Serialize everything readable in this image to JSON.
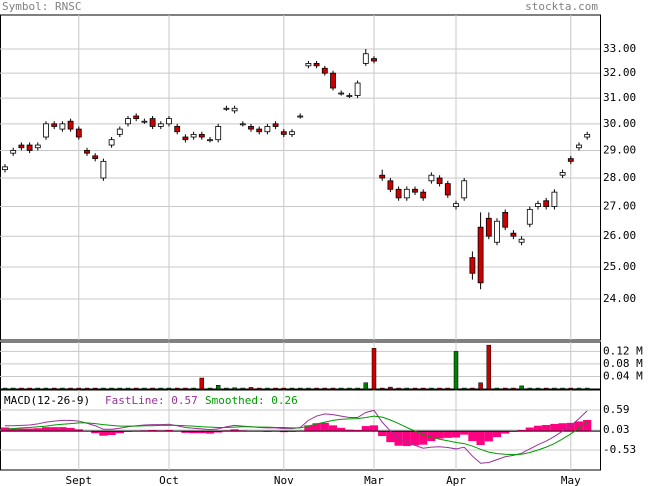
{
  "header": {
    "symbol": "Symbol: RNSC",
    "site": "stockta.com"
  },
  "chart_data": [
    {
      "type": "candlestick",
      "log": true,
      "grid": true,
      "up_color": "#ffffff",
      "down_color": "#cc0000",
      "ylim": [
        22.78,
        34.46
      ],
      "yticks": [
        {
          "value": 33,
          "label": "33.00"
        },
        {
          "value": 32,
          "label": "32.00"
        },
        {
          "value": 31,
          "label": "31.00"
        },
        {
          "value": 30,
          "label": "30.00"
        },
        {
          "value": 29,
          "label": "29.00"
        },
        {
          "value": 28,
          "label": "28.00"
        },
        {
          "value": 27,
          "label": "27.00"
        },
        {
          "value": 26,
          "label": "26.00"
        },
        {
          "value": 25,
          "label": "25.00"
        },
        {
          "value": 24,
          "label": "24.00"
        }
      ],
      "open": [
        28.3,
        28.9,
        29.2,
        29.2,
        29.1,
        29.5,
        30.0,
        29.8,
        30.1,
        29.8,
        29.0,
        28.8,
        28.0,
        29.2,
        29.6,
        30.0,
        30.3,
        30.1,
        30.2,
        29.9,
        30.0,
        29.9,
        29.5,
        29.5,
        29.6,
        29.4,
        29.4,
        30.6,
        30.5,
        30.0,
        29.9,
        29.8,
        29.7,
        30.0,
        29.7,
        29.6,
        30.3,
        32.3,
        32.4,
        32.2,
        32.0,
        31.2,
        31.1,
        31.1,
        32.4,
        32.6,
        28.1,
        27.9,
        27.6,
        27.3,
        27.6,
        27.5,
        27.9,
        28.0,
        27.8,
        27.0,
        27.3,
        25.3,
        26.3,
        26.6,
        25.8,
        26.8,
        26.1,
        25.8,
        26.4,
        27.0,
        27.2,
        27.0,
        28.1,
        28.7,
        29.1,
        29.5
      ],
      "high": [
        28.5,
        29.1,
        29.3,
        29.3,
        29.3,
        30.1,
        30.1,
        30.1,
        30.2,
        29.9,
        29.1,
        28.9,
        28.7,
        29.5,
        29.9,
        30.3,
        30.4,
        30.2,
        30.3,
        30.1,
        30.3,
        30.0,
        29.6,
        29.7,
        29.7,
        29.5,
        30.0,
        30.7,
        30.7,
        30.1,
        30.0,
        29.9,
        30.0,
        30.1,
        29.8,
        29.8,
        30.4,
        32.5,
        32.5,
        32.3,
        32.1,
        31.3,
        31.2,
        31.7,
        33.0,
        32.7,
        28.3,
        28.0,
        27.7,
        27.7,
        27.7,
        27.6,
        28.2,
        28.1,
        27.9,
        27.2,
        28.0,
        25.5,
        26.8,
        26.8,
        26.6,
        26.9,
        26.2,
        26.0,
        27.0,
        27.2,
        27.3,
        27.6,
        28.3,
        28.8,
        29.3,
        29.7
      ],
      "low": [
        28.2,
        28.8,
        29.0,
        28.9,
        29.0,
        29.4,
        29.8,
        29.7,
        29.7,
        29.4,
        28.8,
        28.6,
        27.9,
        29.1,
        29.5,
        29.9,
        30.1,
        30.0,
        29.8,
        29.8,
        29.9,
        29.6,
        29.3,
        29.4,
        29.4,
        29.3,
        29.3,
        30.5,
        30.4,
        29.9,
        29.7,
        29.6,
        29.6,
        29.8,
        29.5,
        29.5,
        30.2,
        32.2,
        32.2,
        31.9,
        31.3,
        31.1,
        31.0,
        31.0,
        32.3,
        32.4,
        27.9,
        27.5,
        27.2,
        27.2,
        27.4,
        27.2,
        27.8,
        27.7,
        27.3,
        26.9,
        27.2,
        24.6,
        24.3,
        25.9,
        25.7,
        26.2,
        25.9,
        25.7,
        26.3,
        26.9,
        26.9,
        26.9,
        28.0,
        28.5,
        29.0,
        29.4
      ],
      "close": [
        28.4,
        29.0,
        29.1,
        29.0,
        29.2,
        30.0,
        29.9,
        30.0,
        29.8,
        29.5,
        28.9,
        28.7,
        28.6,
        29.4,
        29.8,
        30.2,
        30.2,
        30.1,
        29.9,
        30.0,
        30.2,
        29.7,
        29.4,
        29.6,
        29.5,
        29.4,
        29.9,
        30.6,
        30.6,
        30.0,
        29.8,
        29.7,
        29.9,
        29.9,
        29.6,
        29.7,
        30.3,
        32.4,
        32.3,
        32.0,
        31.4,
        31.2,
        31.1,
        31.6,
        32.8,
        32.5,
        28.0,
        27.6,
        27.3,
        27.6,
        27.5,
        27.3,
        28.1,
        27.8,
        27.4,
        27.1,
        27.9,
        24.8,
        24.5,
        26.0,
        26.5,
        26.3,
        26.0,
        25.9,
        26.9,
        27.1,
        27.0,
        27.5,
        28.2,
        28.6,
        29.2,
        29.6
      ]
    },
    {
      "type": "volume",
      "grid": true,
      "up_color": "#008000",
      "down_color": "#cc0000",
      "ylim": [
        0,
        0.15
      ],
      "yticks": [
        {
          "value": 0.12,
          "label": "0.12 M"
        },
        {
          "value": 0.08,
          "label": "0.08 M"
        },
        {
          "value": 0.04,
          "label": "0.04 M"
        }
      ],
      "values": [
        0.003,
        0.003,
        0.003,
        0.003,
        0.003,
        0.003,
        0.003,
        0.003,
        0.003,
        0.003,
        0.003,
        0.003,
        0.003,
        0.003,
        0.003,
        0.003,
        0.003,
        0.003,
        0.003,
        0.003,
        0.003,
        0.003,
        0.003,
        0.003,
        0.035,
        0.003,
        0.012,
        0.003,
        0.004,
        0.003,
        0.005,
        0.003,
        0.003,
        0.003,
        0.003,
        0.003,
        0.003,
        0.003,
        0.003,
        0.003,
        0.003,
        0.003,
        0.003,
        0.003,
        0.02,
        0.13,
        0.003,
        0.006,
        0.003,
        0.003,
        0.003,
        0.003,
        0.003,
        0.003,
        0.003,
        0.12,
        0.003,
        0.003,
        0.02,
        0.14,
        0.003,
        0.003,
        0.003,
        0.01,
        0.003,
        0.003,
        0.003,
        0.003,
        0.003,
        0.003,
        0.003,
        0.003
      ]
    },
    {
      "type": "macd",
      "title": "MACD(12-26-9)",
      "grid": true,
      "ylim": [
        -1.09,
        1.15
      ],
      "yticks": [
        0.59,
        0.03,
        -0.53
      ],
      "categories": [
        null,
        null,
        null,
        null,
        null,
        null,
        null,
        null,
        null,
        "Sept",
        null,
        null,
        null,
        null,
        null,
        null,
        null,
        null,
        null,
        null,
        "Oct",
        null,
        null,
        null,
        null,
        null,
        null,
        null,
        null,
        null,
        null,
        null,
        null,
        null,
        "Nov",
        null,
        null,
        null,
        null,
        null,
        null,
        null,
        null,
        null,
        null,
        "Mar",
        null,
        null,
        null,
        null,
        null,
        null,
        null,
        null,
        null,
        "Apr",
        null,
        null,
        null,
        null,
        null,
        null,
        null,
        null,
        null,
        null,
        null,
        null,
        null,
        "May",
        null,
        null
      ],
      "series": [
        {
          "name": "FastLine: 0.57",
          "color": "#993399",
          "values": [
            0.15,
            0.15,
            0.16,
            0.17,
            0.2,
            0.25,
            0.28,
            0.3,
            0.3,
            0.28,
            0.22,
            0.15,
            0.05,
            0.05,
            0.08,
            0.12,
            0.15,
            0.17,
            0.18,
            0.18,
            0.19,
            0.15,
            0.1,
            0.08,
            0.06,
            0.04,
            0.06,
            0.12,
            0.16,
            0.14,
            0.12,
            0.1,
            0.09,
            0.09,
            0.07,
            0.07,
            0.1,
            0.3,
            0.42,
            0.48,
            0.46,
            0.42,
            0.38,
            0.38,
            0.52,
            0.58,
            0.25,
            0.0,
            -0.2,
            -0.32,
            -0.4,
            -0.48,
            -0.45,
            -0.44,
            -0.46,
            -0.5,
            -0.45,
            -0.7,
            -0.9,
            -0.88,
            -0.8,
            -0.72,
            -0.68,
            -0.62,
            -0.5,
            -0.38,
            -0.28,
            -0.15,
            0.0,
            0.15,
            0.35,
            0.57
          ]
        },
        {
          "name": "Smoothed: 0.26",
          "color": "#009900",
          "values": [
            0.05,
            0.07,
            0.09,
            0.1,
            0.12,
            0.14,
            0.17,
            0.19,
            0.21,
            0.23,
            0.23,
            0.21,
            0.18,
            0.16,
            0.14,
            0.14,
            0.14,
            0.15,
            0.15,
            0.16,
            0.16,
            0.16,
            0.15,
            0.14,
            0.12,
            0.11,
            0.1,
            0.1,
            0.11,
            0.12,
            0.12,
            0.11,
            0.11,
            0.1,
            0.1,
            0.09,
            0.09,
            0.14,
            0.2,
            0.25,
            0.3,
            0.33,
            0.34,
            0.35,
            0.38,
            0.42,
            0.39,
            0.31,
            0.21,
            0.1,
            0.0,
            -0.1,
            -0.17,
            -0.23,
            -0.27,
            -0.32,
            -0.35,
            -0.42,
            -0.51,
            -0.59,
            -0.63,
            -0.65,
            -0.66,
            -0.65,
            -0.6,
            -0.53,
            -0.45,
            -0.35,
            -0.22,
            -0.08,
            0.08,
            0.26
          ]
        }
      ],
      "histogram": {
        "color": "#ff0080",
        "values": [
          0.1,
          0.08,
          0.07,
          0.07,
          0.08,
          0.11,
          0.11,
          0.11,
          0.09,
          0.05,
          -0.01,
          -0.06,
          -0.13,
          -0.11,
          -0.06,
          -0.02,
          0.01,
          0.02,
          0.03,
          0.02,
          0.03,
          -0.01,
          -0.05,
          -0.06,
          -0.06,
          -0.07,
          -0.04,
          0.02,
          0.05,
          0.02,
          0,
          -0.01,
          -0.02,
          -0.01,
          -0.03,
          -0.02,
          0.01,
          0.16,
          0.22,
          0.23,
          0.16,
          0.09,
          0.04,
          0.03,
          0.14,
          0.16,
          -0.14,
          -0.31,
          -0.41,
          -0.42,
          -0.4,
          -0.38,
          -0.28,
          -0.21,
          -0.19,
          -0.18,
          -0.1,
          -0.28,
          -0.39,
          -0.29,
          -0.17,
          -0.07,
          -0.02,
          0.03,
          0.1,
          0.15,
          0.17,
          0.2,
          0.22,
          0.23,
          0.27,
          0.31
        ]
      }
    }
  ]
}
